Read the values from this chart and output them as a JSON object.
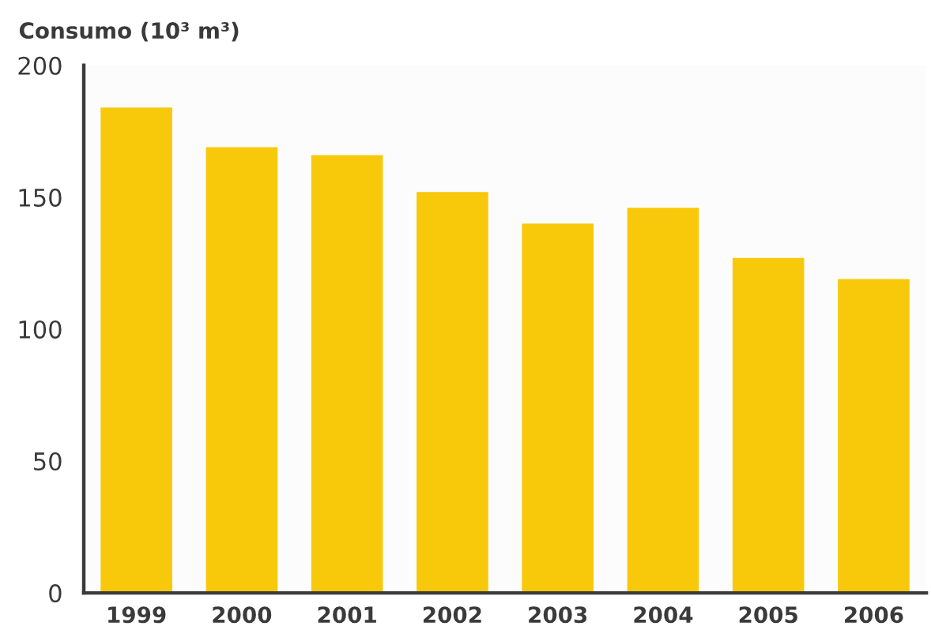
{
  "chart_data": {
    "type": "bar",
    "ylabel": "Consumo (10³ m³)",
    "categories": [
      "1999",
      "2000",
      "2001",
      "2002",
      "2003",
      "2004",
      "2005",
      "2006"
    ],
    "values": [
      184,
      169,
      166,
      152,
      140,
      146,
      127,
      119
    ],
    "color": "#f8c90a",
    "ylim": [
      0,
      200
    ],
    "yticks": [
      0,
      50,
      100,
      150,
      200
    ],
    "grid": false
  }
}
